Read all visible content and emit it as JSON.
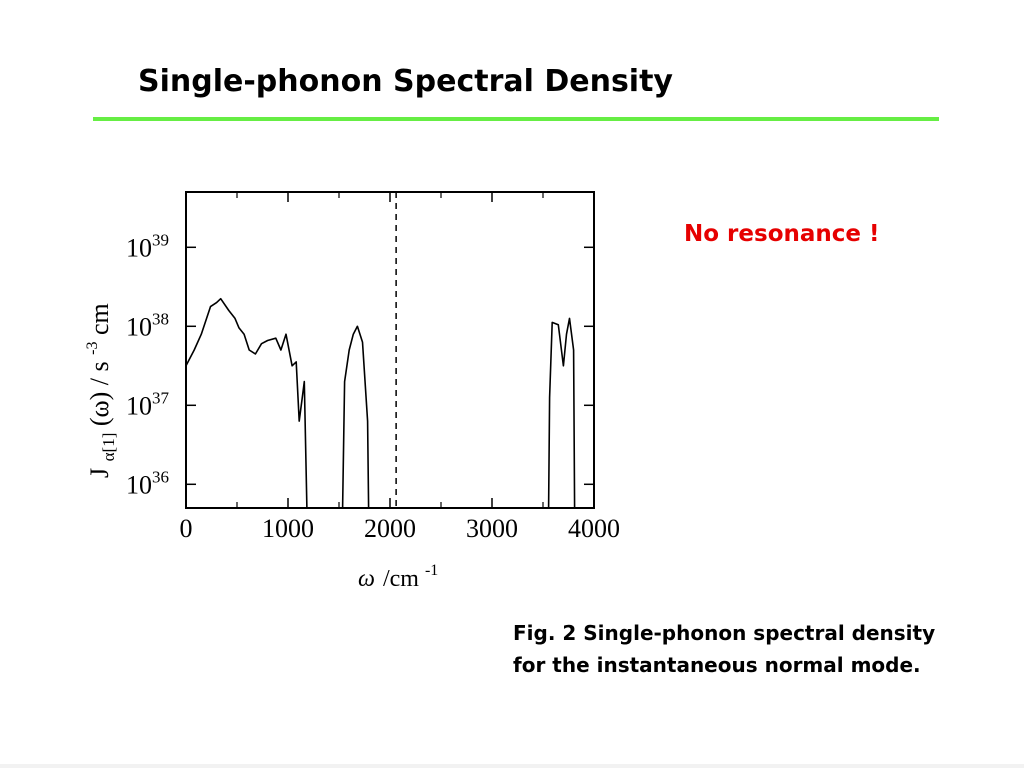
{
  "slide": {
    "title": "Single-phonon Spectral Density",
    "rule_color": "#66ee44",
    "callout": "No resonance !",
    "callout_color": "#e60000",
    "caption_line1": "Fig. 2  Single-phonon spectral density",
    "caption_line2": "for the instantaneous normal mode."
  },
  "chart_data": {
    "type": "line",
    "title": "",
    "xlabel": "ω /cm⁻¹",
    "xlabel_parts": {
      "symbol": "ω",
      "unit": "/cm",
      "exp": "-1"
    },
    "ylabel": "J α[1](ω) / s⁻³cm",
    "ylabel_parts": {
      "main": "J",
      "sub": "α[1]",
      "arg": "(ω)",
      "unit": "/ s",
      "exp": "-3",
      "tail": "cm"
    },
    "xlim": [
      0,
      4000
    ],
    "x_ticks": [
      {
        "value": 0,
        "label": "0"
      },
      {
        "value": 1000,
        "label": "1000"
      },
      {
        "value": 2000,
        "label": "2000"
      },
      {
        "value": 3000,
        "label": "3000"
      },
      {
        "value": 4000,
        "label": "4000"
      }
    ],
    "y_scale": "log",
    "ylim_log10": [
      35.7,
      39.7
    ],
    "y_ticks": [
      {
        "exp": 36,
        "base": "10",
        "sup": "36"
      },
      {
        "exp": 37,
        "base": "10",
        "sup": "37"
      },
      {
        "exp": 38,
        "base": "10",
        "sup": "38"
      },
      {
        "exp": 39,
        "base": "10",
        "sup": "39"
      }
    ],
    "grid": false,
    "vertical_line": {
      "x": 2060,
      "style": "dashed"
    },
    "series": [
      {
        "segments": [
          [
            [
              0,
              37.5
            ],
            [
              80,
              37.7
            ],
            [
              150,
              37.9
            ],
            [
              240,
              38.25
            ],
            [
              300,
              38.3
            ],
            [
              340,
              38.35
            ],
            [
              420,
              38.2
            ],
            [
              480,
              38.1
            ],
            [
              520,
              37.98
            ],
            [
              570,
              37.9
            ],
            [
              620,
              37.7
            ],
            [
              680,
              37.65
            ],
            [
              740,
              37.78
            ],
            [
              800,
              37.82
            ],
            [
              880,
              37.85
            ],
            [
              930,
              37.7
            ],
            [
              980,
              37.9
            ],
            [
              1040,
              37.5
            ],
            [
              1080,
              37.55
            ],
            [
              1110,
              36.8
            ],
            [
              1140,
              37.1
            ],
            [
              1160,
              37.3
            ],
            [
              1185,
              35.7
            ]
          ],
          [
            [
              1535,
              35.7
            ],
            [
              1555,
              37.3
            ],
            [
              1600,
              37.7
            ],
            [
              1640,
              37.9
            ],
            [
              1680,
              38.0
            ],
            [
              1730,
              37.8
            ],
            [
              1780,
              36.8
            ],
            [
              1790,
              35.7
            ]
          ],
          [
            [
              3555,
              35.7
            ],
            [
              3565,
              37.1
            ],
            [
              3590,
              38.05
            ],
            [
              3650,
              38.02
            ],
            [
              3700,
              37.5
            ],
            [
              3730,
              37.9
            ],
            [
              3760,
              38.1
            ],
            [
              3800,
              37.7
            ],
            [
              3810,
              35.7
            ]
          ]
        ]
      }
    ]
  }
}
